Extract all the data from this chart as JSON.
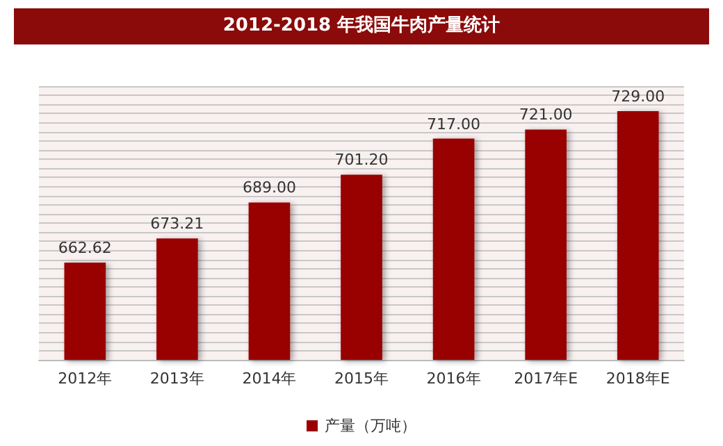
{
  "chart_data": {
    "type": "bar",
    "title": "2012-2018 年我国牛肉产量统计",
    "categories": [
      "2012年",
      "2013年",
      "2014年",
      "2015年",
      "2016年",
      "2017年E",
      "2018年E"
    ],
    "series": [
      {
        "name": "产量（万吨）",
        "color": "#990000",
        "values": [
          662.62,
          673.21,
          689.0,
          701.2,
          717.0,
          721.0,
          729.0
        ],
        "value_labels": [
          "662.62",
          "673.21",
          "689.00",
          "701.20",
          "717.00",
          "721.00",
          "729.00"
        ]
      }
    ],
    "ylim": [
      620,
      740
    ],
    "yticks": [
      {
        "value": 620,
        "label": null
      },
      {
        "value": 624,
        "label": null
      },
      {
        "value": 628,
        "label": null
      },
      {
        "value": 632,
        "label": null
      },
      {
        "value": 636,
        "label": null
      },
      {
        "value": 640,
        "label": null
      },
      {
        "value": 644,
        "label": null
      },
      {
        "value": 648,
        "label": null
      },
      {
        "value": 652,
        "label": null
      },
      {
        "value": 656,
        "label": null
      },
      {
        "value": 660,
        "label": null
      },
      {
        "value": 664,
        "label": null
      },
      {
        "value": 668,
        "label": null
      },
      {
        "value": 672,
        "label": null
      },
      {
        "value": 676,
        "label": null
      },
      {
        "value": 680,
        "label": null
      },
      {
        "value": 684,
        "label": null
      },
      {
        "value": 688,
        "label": null
      },
      {
        "value": 692,
        "label": null
      },
      {
        "value": 696,
        "label": null
      },
      {
        "value": 700,
        "label": null
      },
      {
        "value": 704,
        "label": null
      },
      {
        "value": 708,
        "label": null
      },
      {
        "value": 712,
        "label": null
      },
      {
        "value": 716,
        "label": null
      },
      {
        "value": 720,
        "label": null
      },
      {
        "value": 724,
        "label": null
      },
      {
        "value": 728,
        "label": null
      },
      {
        "value": 732,
        "label": null
      },
      {
        "value": 736,
        "label": null
      },
      {
        "value": 740,
        "label": null
      }
    ],
    "grid": "y",
    "legend": "bottom",
    "tick_labels": "x"
  }
}
